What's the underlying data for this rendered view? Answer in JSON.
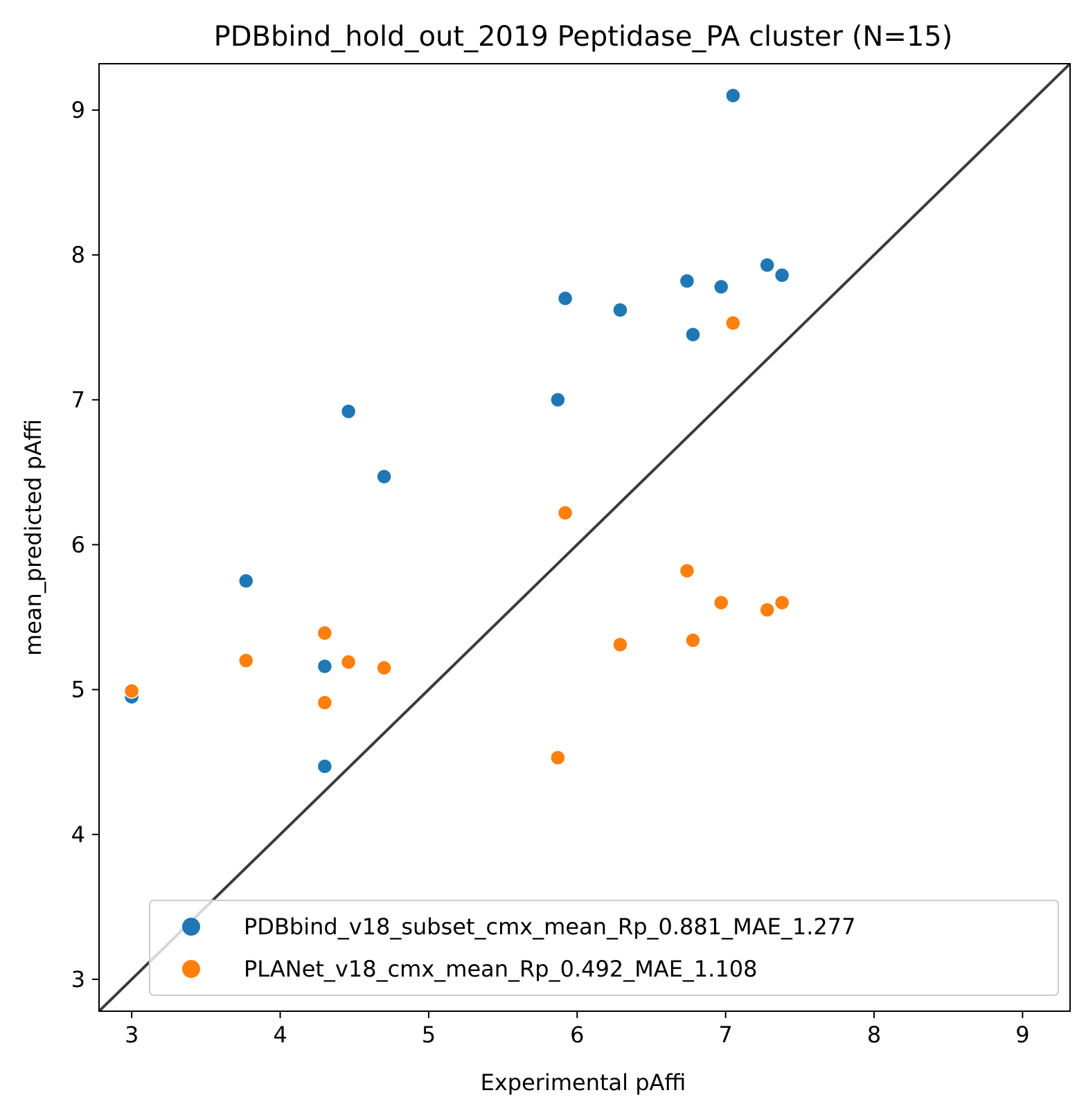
{
  "chart_data": {
    "type": "scatter",
    "title": "PDBbind_hold_out_2019 Peptidase_PA cluster (N=15)",
    "xlabel": "Experimental pAffi",
    "ylabel": "mean_predicted pAffi",
    "xlim": [
      2.78,
      9.32
    ],
    "ylim": [
      2.78,
      9.32
    ],
    "xticks": [
      "3",
      "4",
      "5",
      "6",
      "7",
      "8",
      "9"
    ],
    "yticks": [
      "3",
      "4",
      "5",
      "6",
      "7",
      "8",
      "9"
    ],
    "grid": false,
    "legend_position": "lower-right",
    "diagonal_line": true,
    "series": [
      {
        "name": "PDBbind_v18_subset_cmx_mean_Rp_0.881_MAE_1.277",
        "color": "#1f77b4",
        "points": [
          {
            "x": 3.0,
            "y": 4.95
          },
          {
            "x": 3.77,
            "y": 5.75
          },
          {
            "x": 4.3,
            "y": 5.16
          },
          {
            "x": 4.3,
            "y": 4.47
          },
          {
            "x": 4.46,
            "y": 6.92
          },
          {
            "x": 4.7,
            "y": 6.47
          },
          {
            "x": 5.87,
            "y": 7.0
          },
          {
            "x": 5.92,
            "y": 7.7
          },
          {
            "x": 6.29,
            "y": 7.62
          },
          {
            "x": 6.74,
            "y": 7.82
          },
          {
            "x": 6.78,
            "y": 7.45
          },
          {
            "x": 6.97,
            "y": 7.78
          },
          {
            "x": 7.05,
            "y": 9.1
          },
          {
            "x": 7.28,
            "y": 7.93
          },
          {
            "x": 7.38,
            "y": 7.86
          }
        ]
      },
      {
        "name": "PLANet_v18_cmx_mean_Rp_0.492_MAE_1.108",
        "color": "#ff7f0e",
        "points": [
          {
            "x": 3.0,
            "y": 4.99
          },
          {
            "x": 3.77,
            "y": 5.2
          },
          {
            "x": 4.3,
            "y": 5.39
          },
          {
            "x": 4.3,
            "y": 4.91
          },
          {
            "x": 4.46,
            "y": 5.19
          },
          {
            "x": 4.7,
            "y": 5.15
          },
          {
            "x": 5.87,
            "y": 4.53
          },
          {
            "x": 5.92,
            "y": 6.22
          },
          {
            "x": 6.29,
            "y": 5.31
          },
          {
            "x": 6.74,
            "y": 5.82
          },
          {
            "x": 6.78,
            "y": 5.34
          },
          {
            "x": 6.97,
            "y": 5.6
          },
          {
            "x": 7.05,
            "y": 7.53
          },
          {
            "x": 7.28,
            "y": 5.55
          },
          {
            "x": 7.38,
            "y": 5.6
          }
        ]
      }
    ]
  }
}
